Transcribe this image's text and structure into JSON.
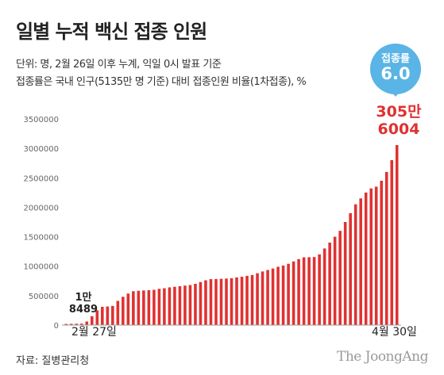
{
  "header": {
    "title": "일별 누적 백신 접종 인원",
    "subtitle_line1": "단위: 명, 2월 26일 이후 누계, 익일 0시 발표 기준",
    "subtitle_line2": "접종률은 국내 인구(5135만 명 기준) 대비 접종인원 비율(1차접종), %"
  },
  "badge": {
    "label": "접종률",
    "value": "6.0"
  },
  "callouts": {
    "last_line1": "305만",
    "last_line2": "6004",
    "first_line1": "1만",
    "first_line2": "8489"
  },
  "footer": {
    "source": "자료: 질병관리청",
    "brand": "The JoongAng"
  },
  "colors": {
    "bar": "#e03131",
    "badge": "#5ab4e6",
    "axis": "#999999"
  },
  "chart_data": {
    "type": "bar",
    "x_first_label": "2월 27일",
    "x_last_label": "4월 30일",
    "ylim": [
      0,
      3500000
    ],
    "yticks": [
      "0",
      "500000",
      "1000000",
      "1500000",
      "2000000",
      "2500000",
      "3000000",
      "3500000"
    ],
    "values": [
      18489,
      21000,
      23000,
      24000,
      60000,
      150000,
      250000,
      310000,
      315000,
      325000,
      410000,
      480000,
      535000,
      575000,
      582000,
      588000,
      592000,
      598000,
      615000,
      625000,
      640000,
      650000,
      660000,
      670000,
      680000,
      700000,
      730000,
      760000,
      780000,
      782000,
      786000,
      790000,
      795000,
      810000,
      820000,
      835000,
      850000,
      880000,
      910000,
      935000,
      960000,
      990000,
      1010000,
      1040000,
      1080000,
      1120000,
      1150000,
      1152000,
      1155000,
      1200000,
      1300000,
      1400000,
      1500000,
      1600000,
      1750000,
      1900000,
      2050000,
      2150000,
      2250000,
      2320000,
      2350000,
      2450000,
      2600000,
      2800000,
      3056004
    ]
  }
}
